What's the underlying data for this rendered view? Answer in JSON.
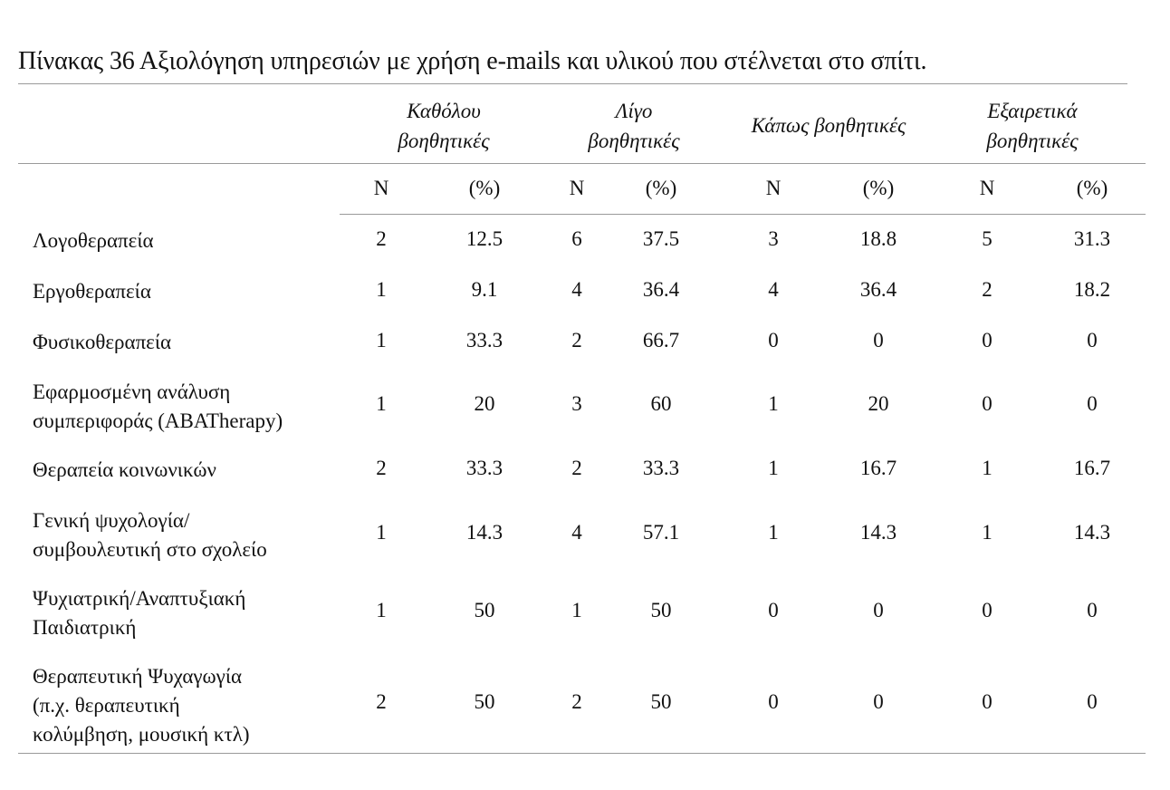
{
  "caption": "Πίνακας 36 Αξιολόγηση υπηρεσιών με χρήση e-mails και υλικού που στέλνεται στο σπίτι.",
  "table": {
    "groups": [
      {
        "line1": "Καθόλου",
        "line2": "βοηθητικές"
      },
      {
        "line1": "Λίγο",
        "line2": "βοηθητικές"
      },
      {
        "line1": "Κάπως βοηθητικές",
        "line2": ""
      },
      {
        "line1": "Εξαιρετικά",
        "line2": "βοηθητικές"
      }
    ],
    "subheaders": [
      "N",
      "(%)",
      "N",
      "(%)",
      "N",
      "(%)",
      "N",
      "(%)"
    ],
    "rows": [
      {
        "label": [
          "Λογοθεραπεία"
        ],
        "values": [
          "2",
          "12.5",
          "6",
          "37.5",
          "3",
          "18.8",
          "5",
          "31.3"
        ]
      },
      {
        "label": [
          "Εργοθεραπεία"
        ],
        "values": [
          "1",
          "9.1",
          "4",
          "36.4",
          "4",
          "36.4",
          "2",
          "18.2"
        ]
      },
      {
        "label": [
          "Φυσικοθεραπεία"
        ],
        "values": [
          "1",
          "33.3",
          "2",
          "66.7",
          "0",
          "0",
          "0",
          "0"
        ]
      },
      {
        "label": [
          "Εφαρμοσμένη ανάλυση",
          "συμπεριφοράς (ABATherapy)"
        ],
        "values": [
          "1",
          "20",
          "3",
          "60",
          "1",
          "20",
          "0",
          "0"
        ]
      },
      {
        "label": [
          "Θεραπεία κοινωνικών"
        ],
        "values": [
          "2",
          "33.3",
          "2",
          "33.3",
          "1",
          "16.7",
          "1",
          "16.7"
        ]
      },
      {
        "label": [
          "Γενική ψυχολογία/",
          "συμβουλευτική στο σχολείο"
        ],
        "values": [
          "1",
          "14.3",
          "4",
          "57.1",
          "1",
          "14.3",
          "1",
          "14.3"
        ]
      },
      {
        "label": [
          "Ψυχιατρική/Αναπτυξιακή",
          "Παιδιατρική"
        ],
        "values": [
          "1",
          "50",
          "1",
          "50",
          "0",
          "0",
          "0",
          "0"
        ]
      },
      {
        "label": [
          "Θεραπευτική Ψυχαγωγία",
          "(π.χ. θεραπευτική",
          "κολύμβηση, μουσική κτλ)"
        ],
        "values": [
          "2",
          "50",
          "2",
          "50",
          "0",
          "0",
          "0",
          "0"
        ]
      }
    ]
  }
}
